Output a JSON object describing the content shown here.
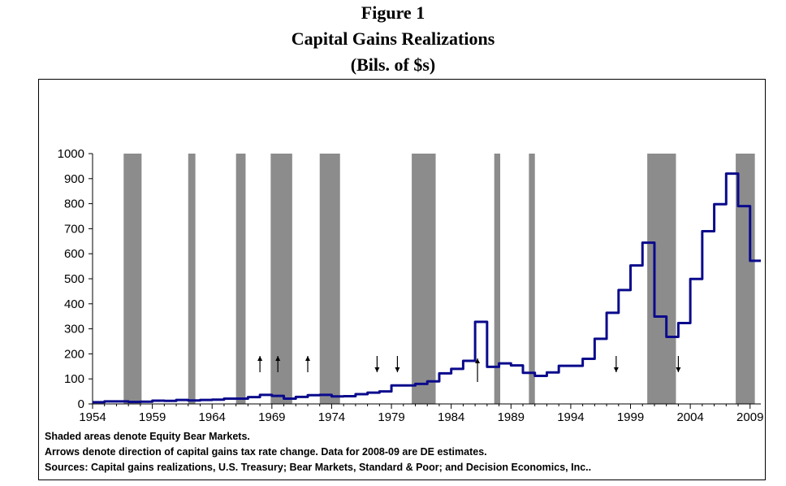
{
  "title": {
    "line1": "Figure 1",
    "line2": "Capital Gains Realizations",
    "line3": "(Bils. of $s)"
  },
  "notes": {
    "shaded": "Shaded areas denote Equity Bear Markets.",
    "arrows": "Arrows denote direction of capital gains tax rate change.    Data for 2008-09 are DE estimates.",
    "sources": "Sources:  Capital gains realizations, U.S. Treasury; Bear Markets, Standard & Poor; and Decision Economics, Inc.."
  },
  "colors": {
    "line": "#0a0a8c",
    "shade": "#8c8c8c",
    "axis": "#000000"
  },
  "chart_data": {
    "type": "line",
    "title": "Capital Gains Realizations",
    "subtitle": "(Bils. of $s)",
    "xlim": [
      1954,
      2009.9
    ],
    "ylim": [
      0,
      1000
    ],
    "yticks": [
      0,
      100,
      200,
      300,
      400,
      500,
      600,
      700,
      800,
      900,
      1000
    ],
    "xticks": [
      1954,
      1959,
      1964,
      1969,
      1974,
      1979,
      1984,
      1989,
      1994,
      1999,
      2004,
      2009
    ],
    "grid": false,
    "series": [
      {
        "x": [
          1954,
          1955,
          1956,
          1957,
          1958,
          1959,
          1960,
          1961,
          1962,
          1963,
          1964,
          1965,
          1966,
          1967,
          1968,
          1969,
          1970,
          1971,
          1972,
          1973,
          1974,
          1975,
          1976,
          1977,
          1978,
          1979,
          1980,
          1981,
          1982,
          1983,
          1984,
          1985,
          1986,
          1987,
          1988,
          1989,
          1990,
          1991,
          1992,
          1993,
          1994,
          1995,
          1996,
          1997,
          1998,
          1999,
          2000,
          2001,
          2002,
          2003,
          2004,
          2005,
          2006,
          2007,
          2008,
          2009
        ],
        "values": [
          7,
          10,
          10,
          8,
          9,
          13,
          12,
          16,
          14,
          16,
          17,
          21,
          21,
          27,
          36,
          32,
          21,
          28,
          35,
          36,
          30,
          31,
          39,
          45,
          50,
          74,
          74,
          80,
          90,
          122,
          140,
          172,
          328,
          148,
          162,
          154,
          124,
          112,
          126,
          152,
          152,
          180,
          260,
          364,
          455,
          553,
          644,
          349,
          268,
          323,
          499,
          690,
          798,
          920,
          790,
          572
        ]
      }
    ],
    "bear_markets": [
      [
        1956.6,
        1958.1
      ],
      [
        1962.0,
        1962.6
      ],
      [
        1966.0,
        1966.8
      ],
      [
        1968.9,
        1970.7
      ],
      [
        1973.0,
        1974.7
      ],
      [
        1980.7,
        1982.7
      ],
      [
        1987.6,
        1988.1
      ],
      [
        1990.5,
        1991.0
      ],
      [
        2000.4,
        2002.8
      ],
      [
        2007.8,
        2009.4
      ]
    ],
    "tax_arrows": [
      {
        "year": 1968,
        "direction": "up"
      },
      {
        "year": 1969.5,
        "direction": "up"
      },
      {
        "year": 1972,
        "direction": "up"
      },
      {
        "year": 1977.8,
        "direction": "down"
      },
      {
        "year": 1979.5,
        "direction": "down"
      },
      {
        "year": 1986.2,
        "direction": "up"
      },
      {
        "year": 1997.8,
        "direction": "down"
      },
      {
        "year": 2003,
        "direction": "down"
      }
    ]
  }
}
